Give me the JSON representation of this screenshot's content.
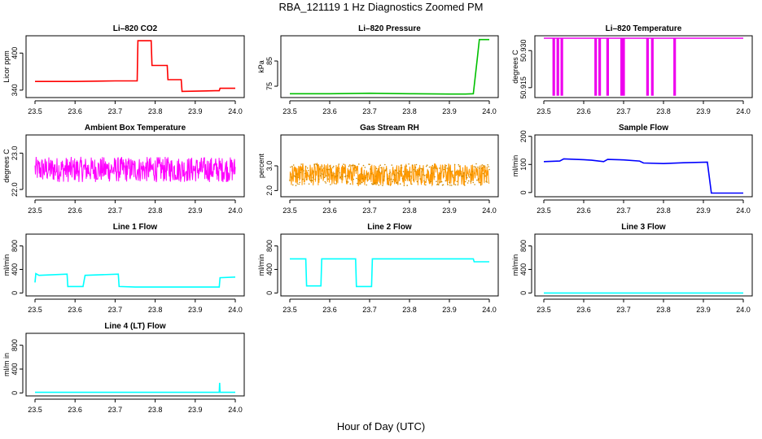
{
  "title": "RBA_121119  1 Hz Diagnostics Zoomed PM",
  "xlabel": "Hour of Day (UTC)",
  "chart_data": [
    {
      "id": "co2",
      "type": "line",
      "title": "Li–820 CO2",
      "ylabel": "Licor ppm",
      "color": "#ff0000",
      "xlim": [
        23.5,
        24.0
      ],
      "xticks": [
        "23.5",
        "23.6",
        "23.7",
        "23.8",
        "23.9",
        "24.0"
      ],
      "ylim": [
        328,
        428
      ],
      "yticks": [
        {
          "v": 340,
          "label": "340"
        },
        {
          "v": 400,
          "label": "400"
        }
      ],
      "series": [
        {
          "name": "CO2",
          "x": [
            23.5,
            23.6,
            23.7,
            23.755,
            23.757,
            23.79,
            23.792,
            23.83,
            23.832,
            23.865,
            23.867,
            23.95,
            23.96,
            23.962,
            24.0
          ],
          "values": [
            354,
            354,
            355,
            355,
            420,
            420,
            380,
            380,
            357,
            357,
            338,
            339,
            339,
            343,
            343
          ]
        }
      ]
    },
    {
      "id": "pressure",
      "type": "line",
      "title": "Li–820 Pressure",
      "ylabel": "kPa",
      "color": "#00c000",
      "xlim": [
        23.5,
        24.0
      ],
      "xticks": [
        "23.5",
        "23.6",
        "23.7",
        "23.8",
        "23.9",
        "24.0"
      ],
      "ylim": [
        70.5,
        95
      ],
      "yticks": [
        {
          "v": 75,
          "label": "75"
        },
        {
          "v": 85,
          "label": "85"
        }
      ],
      "series": [
        {
          "name": "Pressure",
          "x": [
            23.5,
            23.6,
            23.7,
            23.8,
            23.9,
            23.94,
            23.96,
            23.97,
            23.975,
            24.0
          ],
          "values": [
            72,
            72,
            72.2,
            72,
            71.9,
            71.9,
            72,
            86,
            93.5,
            93.5
          ]
        }
      ]
    },
    {
      "id": "temperature",
      "type": "line",
      "title": "Li–820 Temperature",
      "ylabel": "degrees C",
      "color": "#ee00ee",
      "xlim": [
        23.5,
        24.0
      ],
      "xticks": [
        "23.5",
        "23.6",
        "23.7",
        "23.8",
        "23.9",
        "24.0"
      ],
      "ylim": [
        50.911,
        50.936
      ],
      "yticks": [
        {
          "v": 50.915,
          "label": "50.915"
        },
        {
          "v": 50.93,
          "label": "50.930"
        }
      ],
      "baseline": 50.935,
      "dip": 50.912,
      "dips": [
        23.525,
        23.535,
        23.545,
        23.63,
        23.64,
        23.66,
        23.695,
        23.7,
        23.76,
        23.772,
        23.828
      ]
    },
    {
      "id": "ambient",
      "type": "noise",
      "title": "Ambient Box Temperature",
      "ylabel": "degrees C",
      "color": "#ff00ff",
      "xlim": [
        23.5,
        24.0
      ],
      "xticks": [
        "23.5",
        "23.6",
        "23.7",
        "23.8",
        "23.9",
        "24.0"
      ],
      "ylim": [
        21.8,
        23.5
      ],
      "yticks": [
        {
          "v": 22.0,
          "label": "22.0"
        },
        {
          "v": 23.0,
          "label": "23.0"
        }
      ],
      "mean": 22.55,
      "spread": 0.35
    },
    {
      "id": "rh",
      "type": "noise",
      "title": "Gas Stream RH",
      "ylabel": "percent",
      "color": "#ff9900",
      "xlim": [
        23.5,
        24.0
      ],
      "xticks": [
        "23.5",
        "23.6",
        "23.7",
        "23.8",
        "23.9",
        "24.0"
      ],
      "ylim": [
        1.75,
        4.25
      ],
      "yticks": [
        {
          "v": 2.0,
          "label": "2.0"
        },
        {
          "v": 3.0,
          "label": "3.0"
        }
      ],
      "mean": 2.65,
      "spread": 0.45
    },
    {
      "id": "sample",
      "type": "line",
      "title": "Sample Flow",
      "ylabel": "ml/min",
      "color": "#0000ff",
      "xlim": [
        23.5,
        24.0
      ],
      "xticks": [
        "23.5",
        "23.6",
        "23.7",
        "23.8",
        "23.9",
        "24.0"
      ],
      "ylim": [
        -15,
        205
      ],
      "yticks": [
        {
          "v": 0,
          "label": "0"
        },
        {
          "v": 100,
          "label": "100"
        },
        {
          "v": 200,
          "label": "200"
        }
      ],
      "series": [
        {
          "name": "Sample",
          "x": [
            23.5,
            23.54,
            23.55,
            23.6,
            23.62,
            23.65,
            23.66,
            23.7,
            23.74,
            23.75,
            23.8,
            23.85,
            23.91,
            23.92,
            24.0
          ],
          "values": [
            110,
            112,
            120,
            117,
            115,
            110,
            118,
            116,
            112,
            105,
            103,
            106,
            108,
            -2,
            -2
          ]
        }
      ]
    },
    {
      "id": "line1",
      "type": "line",
      "title": "Line 1 Flow",
      "ylabel": "ml/min",
      "color": "#00ffff",
      "xlim": [
        23.5,
        24.0
      ],
      "xticks": [
        "23.5",
        "23.6",
        "23.7",
        "23.8",
        "23.9",
        "24.0"
      ],
      "ylim": [
        -50,
        1000
      ],
      "yticks": [
        {
          "v": 0,
          "label": "0"
        },
        {
          "v": 400,
          "label": "400"
        },
        {
          "v": 800,
          "label": "800"
        }
      ],
      "series": [
        {
          "name": "Line1",
          "x": [
            23.5,
            23.502,
            23.51,
            23.58,
            23.582,
            23.62,
            23.625,
            23.708,
            23.71,
            23.75,
            23.96,
            23.962,
            24.0
          ],
          "values": [
            180,
            330,
            300,
            320,
            110,
            110,
            300,
            320,
            110,
            100,
            100,
            260,
            270
          ]
        }
      ]
    },
    {
      "id": "line2",
      "type": "line",
      "title": "Line 2 Flow",
      "ylabel": "ml/min",
      "color": "#00ffff",
      "xlim": [
        23.5,
        24.0
      ],
      "xticks": [
        "23.5",
        "23.6",
        "23.7",
        "23.8",
        "23.9",
        "24.0"
      ],
      "ylim": [
        -50,
        1000
      ],
      "yticks": [
        {
          "v": 0,
          "label": "0"
        },
        {
          "v": 400,
          "label": "400"
        },
        {
          "v": 800,
          "label": "800"
        }
      ],
      "series": [
        {
          "name": "Line2",
          "x": [
            23.5,
            23.54,
            23.542,
            23.578,
            23.58,
            23.665,
            23.667,
            23.705,
            23.707,
            23.96,
            23.962,
            24.0
          ],
          "values": [
            580,
            580,
            120,
            120,
            580,
            580,
            110,
            110,
            580,
            580,
            530,
            530
          ]
        }
      ]
    },
    {
      "id": "line3",
      "type": "line",
      "title": "Line 3 Flow",
      "ylabel": "ml/min",
      "color": "#00ffff",
      "xlim": [
        23.5,
        24.0
      ],
      "xticks": [
        "23.5",
        "23.6",
        "23.7",
        "23.8",
        "23.9",
        "24.0"
      ],
      "ylim": [
        -50,
        1000
      ],
      "yticks": [
        {
          "v": 0,
          "label": "0"
        },
        {
          "v": 400,
          "label": "400"
        },
        {
          "v": 800,
          "label": "800"
        }
      ],
      "series": [
        {
          "name": "Line3",
          "x": [
            23.5,
            24.0
          ],
          "values": [
            0,
            0
          ]
        }
      ]
    },
    {
      "id": "line4",
      "type": "line",
      "title": "Line 4 (LT) Flow",
      "ylabel": "ml/m in",
      "color": "#00ffff",
      "xlim": [
        23.5,
        24.0
      ],
      "xticks": [
        "23.5",
        "23.6",
        "23.7",
        "23.8",
        "23.9",
        "24.0"
      ],
      "ylim": [
        -50,
        1000
      ],
      "yticks": [
        {
          "v": 0,
          "label": "0"
        },
        {
          "v": 400,
          "label": "400"
        },
        {
          "v": 800,
          "label": "800"
        }
      ],
      "series": [
        {
          "name": "Line4",
          "x": [
            23.5,
            23.96,
            23.961,
            23.962,
            23.963,
            24.0
          ],
          "values": [
            10,
            10,
            170,
            10,
            10,
            10
          ]
        }
      ]
    }
  ]
}
